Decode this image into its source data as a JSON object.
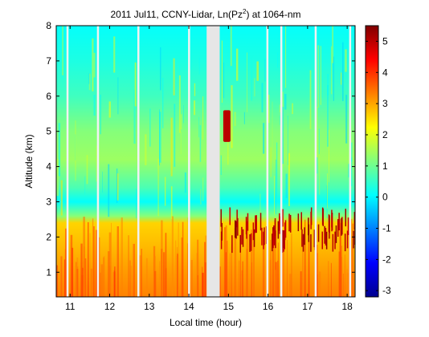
{
  "chart_data": {
    "type": "heatmap",
    "title": "2011 Jul11, CCNY-Lidar, Ln(Pz",
    "title_sup": "2",
    "title_suffix": ") at 1064-nm",
    "xlabel": "Local time (hour)",
    "ylabel": "Altitude (km)",
    "xlim": [
      10.65,
      18.2
    ],
    "ylim": [
      0.3,
      8
    ],
    "xticks": [
      11,
      12,
      13,
      14,
      15,
      16,
      17,
      18
    ],
    "yticks": [
      1,
      2,
      3,
      4,
      5,
      6,
      7,
      8
    ],
    "colorbar": {
      "range": [
        -3.2,
        5.5
      ],
      "ticks": [
        -3,
        -2,
        -1,
        0,
        1,
        2,
        3,
        4,
        5
      ],
      "colormap": "jet"
    },
    "profile": [
      {
        "alt": 0.3,
        "value": 3.3
      },
      {
        "alt": 1.0,
        "value": 3.1
      },
      {
        "alt": 1.8,
        "value": 2.8
      },
      {
        "alt": 2.4,
        "value": 2.6
      },
      {
        "alt": 2.6,
        "value": 1.2
      },
      {
        "alt": 3.0,
        "value": 0.1
      },
      {
        "alt": 3.4,
        "value": 0.7
      },
      {
        "alt": 4.2,
        "value": 1.4
      },
      {
        "alt": 5.0,
        "value": 1.2
      },
      {
        "alt": 6.0,
        "value": 0.6
      },
      {
        "alt": 7.0,
        "value": 0.3
      },
      {
        "alt": 8.0,
        "value": 0.1
      }
    ],
    "data_gaps": [
      {
        "start": 14.45,
        "end": 14.78
      }
    ],
    "dropouts": [
      10.93,
      11.7,
      12.72,
      14.0,
      15.98,
      16.33,
      17.2,
      18.07
    ],
    "features": [
      {
        "label": "cloud",
        "time": 14.95,
        "alt_min": 4.7,
        "alt_max": 5.6,
        "value": 5.0
      }
    ]
  }
}
